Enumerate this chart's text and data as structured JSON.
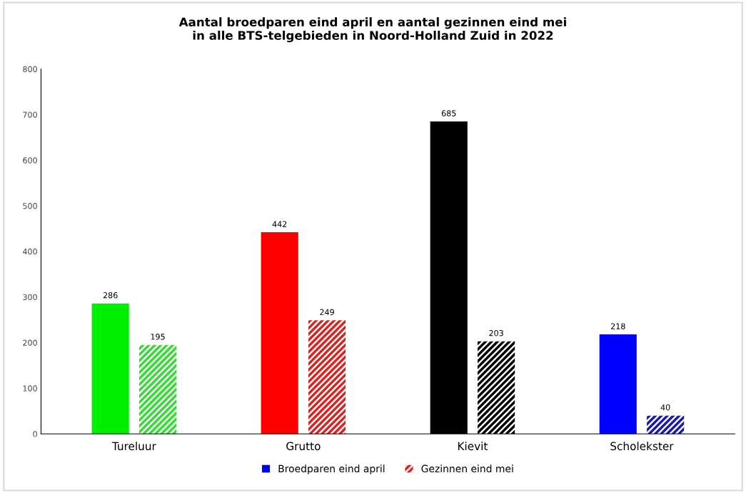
{
  "chart_data": {
    "type": "bar",
    "title": "Aantal broedparen eind april en aantal gezinnen eind mei\nin alle BTS-telgebieden in Noord-Holland Zuid in 2022",
    "categories": [
      "Tureluur",
      "Grutto",
      "Kievit",
      "Scholekster"
    ],
    "series": [
      {
        "name": "Broedparen eind april",
        "color": "#0000ff",
        "colors": [
          "#00ee00",
          "#ff0000",
          "#000000",
          "#0000ff"
        ],
        "values": [
          286,
          442,
          685,
          218
        ]
      },
      {
        "name": "Gezinnen eind mei",
        "color": "#dd2222",
        "colors": [
          "#33dd33",
          "#dd2222",
          "#000000",
          "#1a1aaa"
        ],
        "values": [
          195,
          249,
          203,
          40
        ]
      }
    ],
    "ylim": [
      0,
      800
    ],
    "yticks": [
      0,
      100,
      200,
      300,
      400,
      500,
      600,
      700,
      800
    ],
    "grid": false,
    "legend": "bottom",
    "data_labels": true
  }
}
